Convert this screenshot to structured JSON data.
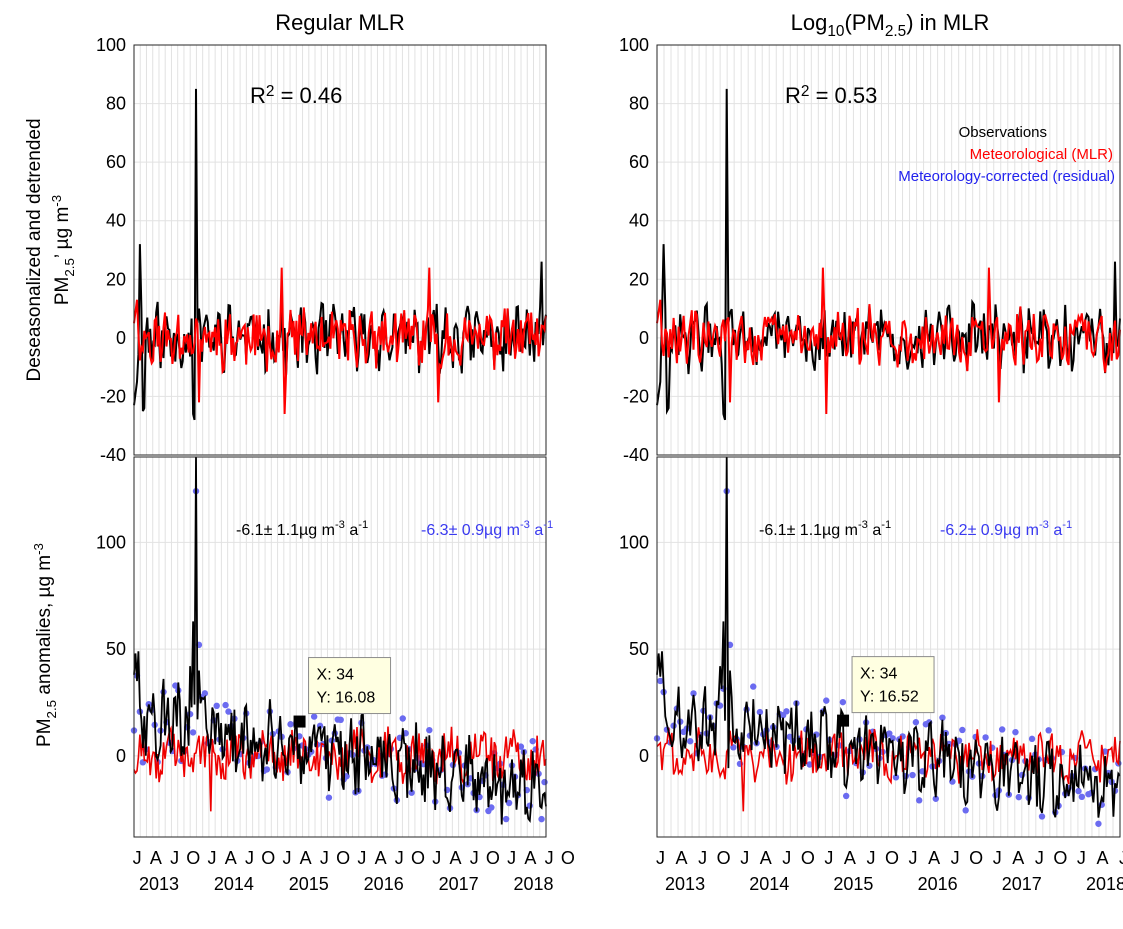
{
  "chart_data": [
    {
      "type": "line",
      "panel": "top-left",
      "title": "Regular MLR",
      "ylabel": "Deseasonalized and detrended PM2.5, µg m-3",
      "ylim": [
        -40,
        100
      ],
      "y_ticks": [
        "-40",
        "-20",
        "0",
        "20",
        "40",
        "60",
        "80",
        "100"
      ],
      "annotation": "R² = 0.46",
      "series": [
        {
          "name": "Observations",
          "color": "#000000",
          "kind": "line"
        },
        {
          "name": "Meteorological (MLR)",
          "color": "#ff0000",
          "kind": "line"
        }
      ]
    },
    {
      "type": "line",
      "panel": "top-right",
      "title": "Log10(PM2.5) in MLR",
      "ylim": [
        -40,
        100
      ],
      "y_ticks": [
        "-40",
        "-20",
        "0",
        "20",
        "40",
        "60",
        "80",
        "100"
      ],
      "annotation": "R² = 0.53",
      "legend": {
        "placement": "top-right",
        "entries": [
          {
            "label": "Observations",
            "color": "#000000"
          },
          {
            "label": "Meteorological (MLR)",
            "color": "#ff0000"
          },
          {
            "label": "Meteorology-corrected (residual)",
            "color": "#2222ee"
          }
        ]
      }
    },
    {
      "type": "line",
      "panel": "bottom-left",
      "ylabel": "PM2.5 anomalies, µg m-3",
      "ylim": [
        -38,
        140
      ],
      "y_ticks": [
        "0",
        "50",
        "100"
      ],
      "trend_obs": "-6.1± 1.1µg m-3 a-1",
      "trend_resid": "-6.3± 0.9µg m-3 a-1",
      "datatip": {
        "x_label": "X: 34",
        "y_label": "Y: 16.08",
        "x": 34,
        "y": 16.08
      },
      "series": [
        {
          "name": "Observations",
          "color": "#000000",
          "kind": "line"
        },
        {
          "name": "Meteorological (MLR)",
          "color": "#ff0000",
          "kind": "line"
        },
        {
          "name": "Meteorology-corrected (residual)",
          "color": "#6666ee",
          "kind": "scatter"
        }
      ]
    },
    {
      "type": "line",
      "panel": "bottom-right",
      "ylim": [
        -38,
        140
      ],
      "y_ticks": [
        "0",
        "50",
        "100"
      ],
      "trend_obs": "-6.1± 1.1µg m-3 a-1",
      "trend_resid": "-6.2± 0.9µg m-3 a-1",
      "datatip": {
        "x_label": "X: 34",
        "y_label": "Y: 16.52",
        "x": 34,
        "y": 16.52
      }
    }
  ],
  "x_axis": {
    "month_labels": [
      "J",
      "A",
      "J",
      "O",
      "J",
      "A",
      "J",
      "O",
      "J",
      "A",
      "J",
      "O",
      "J",
      "A",
      "J",
      "O",
      "J",
      "A",
      "J",
      "O",
      "J",
      "A",
      "J",
      "O"
    ],
    "year_labels": [
      "2013",
      "2014",
      "2015",
      "2016",
      "2017",
      "2018"
    ]
  }
}
